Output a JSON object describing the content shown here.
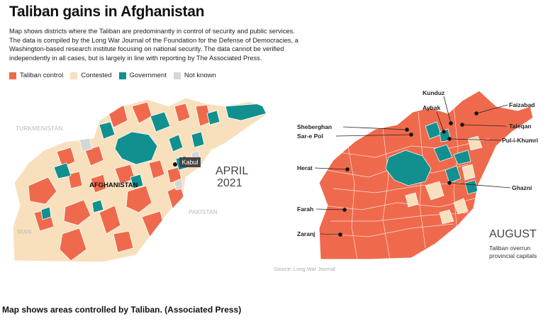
{
  "header": {
    "title": "Taliban gains in Afghanistan",
    "description": "Map shows districts where the Taliban are predominantly in control of security and public services. The data is compiled by the Long War Journal of the Foundation for the Defense of Democracies, a Washington-based research institute focusing on national security. The data cannot be verified independently in all cases, but is largely in line with reporting by The Associated Press."
  },
  "legend": [
    {
      "label": "Taliban control",
      "color": "#ef6a4c"
    },
    {
      "label": "Contested",
      "color": "#f8e0bd"
    },
    {
      "label": "Government",
      "color": "#11908f"
    },
    {
      "label": "Not known",
      "color": "#d6d6d6"
    }
  ],
  "april_map": {
    "country_label": "AFGHANISTAN",
    "neighbors": [
      "TURKMENISTAN",
      "IRAN",
      "PAKISTAN"
    ],
    "city_label": "Kabul",
    "date_label_month": "APRIL",
    "date_label_year": "2021"
  },
  "august_map": {
    "cities": [
      "Kunduz",
      "Faizabad",
      "Aybak",
      "Sheberghan",
      "Taleqan",
      "Sar-e Pol",
      "Pul-i-Khumri",
      "Herat",
      "Ghazni",
      "Farah",
      "Zaranj"
    ],
    "date_label": "AUGUST",
    "subtitle_line1": "Taliban overrun",
    "subtitle_line2": "provincial capitals",
    "source": "Source: Long War Journal"
  },
  "caption": "Map shows areas controlled by Taliban. (Associated Press)"
}
